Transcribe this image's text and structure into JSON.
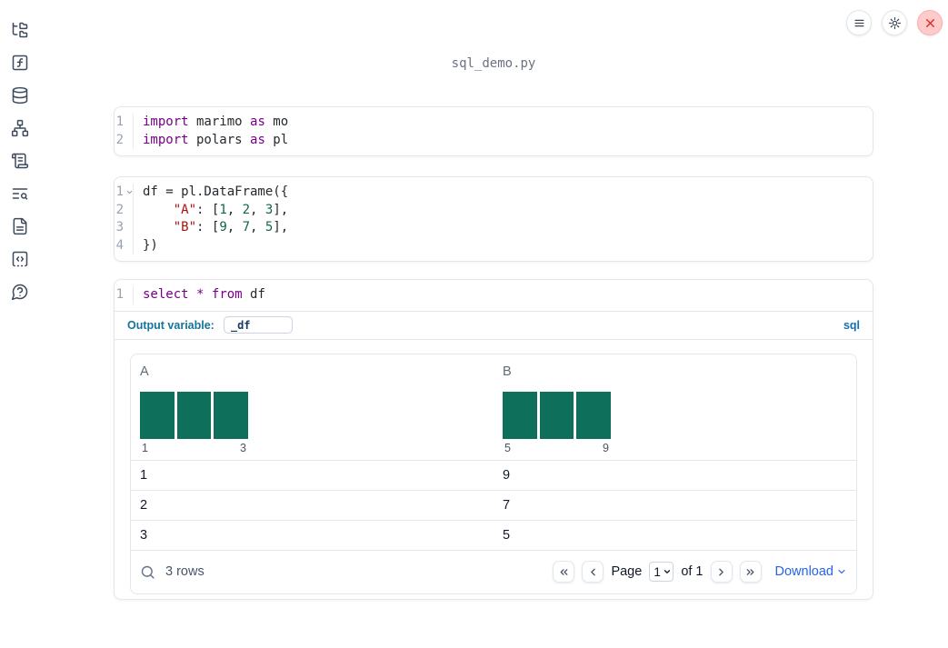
{
  "app": {
    "filename": "sql_demo.py"
  },
  "colors": {
    "histogram_bar": "#0e6f5b",
    "download_link": "#2563eb",
    "output_variable_label": "#15749a",
    "sql_badge": "#1470b5",
    "keyword": "#770088",
    "string": "#aa1111",
    "number": "#116644",
    "close_button": "#dc2626"
  },
  "sidebar": {
    "icons": [
      "file-tree-icon",
      "function-square-icon",
      "database-icon",
      "dependency-graph-icon",
      "scroll-text-icon",
      "text-search-icon",
      "document-icon",
      "snippets-icon",
      "help-icon"
    ]
  },
  "topbar": {
    "icons": [
      "menu-icon",
      "gear-icon",
      "close-icon"
    ]
  },
  "cells": {
    "imports": {
      "lines": [
        {
          "n": "1",
          "tokens": [
            [
              "kw",
              "import"
            ],
            [
              "tx",
              " marimo "
            ],
            [
              "kw",
              "as"
            ],
            [
              "tx",
              " mo"
            ]
          ]
        },
        {
          "n": "2",
          "tokens": [
            [
              "kw",
              "import"
            ],
            [
              "tx",
              " polars "
            ],
            [
              "kw",
              "as"
            ],
            [
              "tx",
              " pl"
            ]
          ]
        }
      ]
    },
    "dataframe": {
      "lines": [
        {
          "n": "1",
          "fold": true,
          "tokens": [
            [
              "tx",
              "df = pl.DataFrame({"
            ]
          ]
        },
        {
          "n": "2",
          "tokens": [
            [
              "tx",
              "    "
            ],
            [
              "st",
              "\"A\""
            ],
            [
              "tx",
              ": ["
            ],
            [
              "nu",
              "1"
            ],
            [
              "tx",
              ", "
            ],
            [
              "nu",
              "2"
            ],
            [
              "tx",
              ", "
            ],
            [
              "nu",
              "3"
            ],
            [
              "tx",
              "],"
            ]
          ]
        },
        {
          "n": "3",
          "tokens": [
            [
              "tx",
              "    "
            ],
            [
              "st",
              "\"B\""
            ],
            [
              "tx",
              ": ["
            ],
            [
              "nu",
              "9"
            ],
            [
              "tx",
              ", "
            ],
            [
              "nu",
              "7"
            ],
            [
              "tx",
              ", "
            ],
            [
              "nu",
              "5"
            ],
            [
              "tx",
              "],"
            ]
          ]
        },
        {
          "n": "4",
          "tokens": [
            [
              "tx",
              "})"
            ]
          ]
        }
      ]
    },
    "sql": {
      "lines": [
        {
          "n": "1",
          "tokens": [
            [
              "kw",
              "select"
            ],
            [
              "tx",
              " "
            ],
            [
              "kw",
              "*"
            ],
            [
              "tx",
              " "
            ],
            [
              "kw",
              "from"
            ],
            [
              "tx",
              " df"
            ]
          ]
        }
      ],
      "output_variable_label": "Output variable:",
      "output_variable_value": "_df",
      "language_badge": "sql"
    }
  },
  "table": {
    "columns": [
      {
        "name": "A",
        "histogram": {
          "type": "bar",
          "values": [
            1,
            1,
            1
          ],
          "min_label": "1",
          "max_label": "3"
        }
      },
      {
        "name": "B",
        "histogram": {
          "type": "bar",
          "values": [
            1,
            1,
            1
          ],
          "min_label": "5",
          "max_label": "9"
        }
      }
    ],
    "rows": [
      {
        "a": "1",
        "b": "9"
      },
      {
        "a": "2",
        "b": "7"
      },
      {
        "a": "3",
        "b": "5"
      }
    ],
    "footer": {
      "row_count": "3 rows",
      "page_label": "Page",
      "page_value": "1",
      "of_label": "of 1",
      "download_label": "Download"
    }
  }
}
